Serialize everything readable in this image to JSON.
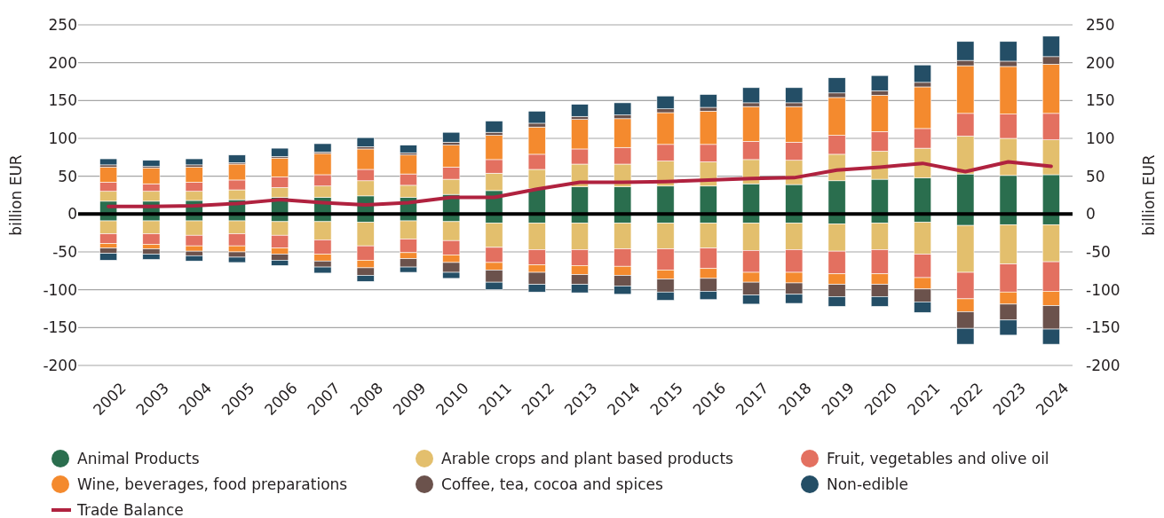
{
  "chart_data": {
    "type": "bar",
    "stacked": true,
    "ylabel": "billion EUR",
    "y2label": "billion EUR",
    "categories": [
      "2002",
      "2003",
      "2004",
      "2005",
      "2006",
      "2007",
      "2008",
      "2009",
      "2010",
      "2011",
      "2012",
      "2013",
      "2014",
      "2015",
      "2016",
      "2017",
      "2018",
      "2019",
      "2020",
      "2021",
      "2022",
      "2023",
      "2024"
    ],
    "ylim": [
      -200,
      250
    ],
    "yticks": [
      -200,
      -150,
      -100,
      -50,
      0,
      50,
      100,
      150,
      200,
      250
    ],
    "y2lim": [
      -200,
      250
    ],
    "y2ticks": [
      -200,
      -150,
      -100,
      -50,
      0,
      50,
      100,
      150,
      200,
      250
    ],
    "grid": "y",
    "legend": "bottom",
    "ref_lines": [
      {
        "axis": "y",
        "value": 0,
        "color": "#000000"
      }
    ],
    "series": [
      {
        "name": "Animal Products",
        "color": "#2a6e4e",
        "values": [
          17,
          17,
          18,
          19,
          22,
          22,
          24,
          22,
          26,
          31,
          34,
          36,
          36,
          37,
          37,
          40,
          39,
          44,
          46,
          48,
          53,
          51,
          52
        ]
      },
      {
        "name": "Arable crops and plant based products",
        "color": "#e3bf6d",
        "values": [
          13,
          13,
          12,
          13,
          13,
          15,
          20,
          16,
          20,
          23,
          25,
          30,
          30,
          33,
          32,
          32,
          32,
          35,
          37,
          39,
          50,
          49,
          46
        ]
      },
      {
        "name": "Fruit, vegetables and olive oil",
        "color": "#e37060",
        "values": [
          12,
          10,
          12,
          13,
          14,
          15,
          15,
          15,
          16,
          18,
          20,
          20,
          22,
          22,
          23,
          24,
          24,
          25,
          26,
          26,
          30,
          32,
          35
        ]
      },
      {
        "name": "Wine, beverages, food preparations",
        "color": "#f48a2e",
        "values": [
          20,
          21,
          20,
          21,
          25,
          28,
          27,
          25,
          29,
          32,
          36,
          39,
          38,
          42,
          44,
          46,
          47,
          50,
          48,
          55,
          63,
          63,
          65
        ]
      },
      {
        "name": "Coffee, tea, cocoa and spices",
        "color": "#6b524c",
        "values": [
          3,
          2,
          3,
          2,
          2,
          2,
          3,
          3,
          4,
          4,
          5,
          4,
          5,
          5,
          5,
          5,
          5,
          6,
          6,
          6,
          7,
          7,
          10
        ]
      },
      {
        "name": "Non-edible",
        "color": "#244e66",
        "values": [
          8,
          8,
          8,
          10,
          11,
          11,
          12,
          10,
          13,
          15,
          16,
          16,
          16,
          17,
          17,
          20,
          20,
          20,
          20,
          23,
          25,
          26,
          27
        ]
      },
      {
        "color": "#2a6e4e",
        "values": [
          -9,
          -9,
          -9,
          -9,
          -10,
          -10,
          -11,
          -9,
          -10,
          -12,
          -12,
          -12,
          -12,
          -12,
          -12,
          -12,
          -12,
          -13,
          -12,
          -11,
          -15,
          -14,
          -14
        ]
      },
      {
        "color": "#e3bf6d",
        "values": [
          -17,
          -17,
          -19,
          -17,
          -18,
          -24,
          -31,
          -24,
          -25,
          -32,
          -35,
          -35,
          -34,
          -34,
          -33,
          -36,
          -35,
          -36,
          -35,
          -42,
          -62,
          -52,
          -49
        ]
      },
      {
        "color": "#e37060",
        "values": [
          -13,
          -14,
          -14,
          -16,
          -17,
          -19,
          -19,
          -18,
          -19,
          -20,
          -20,
          -21,
          -23,
          -28,
          -27,
          -29,
          -30,
          -30,
          -32,
          -31,
          -35,
          -37,
          -39
        ]
      },
      {
        "color": "#f48a2e",
        "values": [
          -6,
          -6,
          -7,
          -8,
          -8,
          -9,
          -10,
          -8,
          -10,
          -10,
          -10,
          -12,
          -12,
          -12,
          -13,
          -13,
          -14,
          -14,
          -14,
          -15,
          -17,
          -16,
          -19
        ]
      },
      {
        "color": "#6b524c",
        "values": [
          -7,
          -7,
          -6,
          -7,
          -8,
          -8,
          -10,
          -11,
          -13,
          -16,
          -16,
          -13,
          -14,
          -17,
          -17,
          -17,
          -15,
          -16,
          -16,
          -17,
          -22,
          -21,
          -31
        ]
      },
      {
        "color": "#244e66",
        "values": [
          -9,
          -7,
          -7,
          -7,
          -7,
          -8,
          -8,
          -7,
          -8,
          -10,
          -10,
          -11,
          -11,
          -11,
          -11,
          -12,
          -12,
          -13,
          -13,
          -14,
          -21,
          -20,
          -20
        ]
      },
      {
        "name": "Trade Balance",
        "type": "line",
        "color": "#b0223f",
        "values": [
          10,
          10,
          11,
          14,
          19,
          15,
          12,
          15,
          22,
          22,
          33,
          42,
          42,
          43,
          45,
          47,
          48,
          58,
          62,
          67,
          56,
          69,
          63
        ]
      }
    ]
  }
}
